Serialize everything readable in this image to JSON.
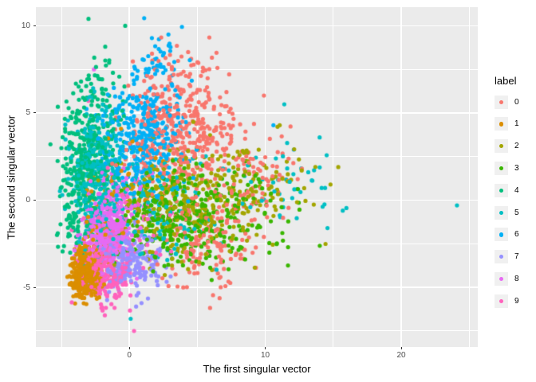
{
  "colors": {
    "background": "#ffffff",
    "panel_bg": "#ebebeb",
    "grid": "#ffffff",
    "tick_label": "#4d4d4d",
    "tick_mark": "#333333",
    "axis_title": "#000000",
    "legend_key_bg": "#f0f0f0"
  },
  "chart_data": {
    "type": "scatter",
    "title": "",
    "xlabel": "The first singular vector",
    "ylabel": "The second singular vector",
    "xlim": [
      -6.87,
      25.63
    ],
    "ylim": [
      -8.42,
      11.07
    ],
    "x_major_ticks": [
      0,
      10,
      20
    ],
    "x_minor_ticks": [
      -5,
      5,
      15,
      25
    ],
    "y_major_ticks": [
      -5,
      0,
      5,
      10
    ],
    "y_minor_ticks": [
      -7.5,
      -2.5,
      2.5,
      7.5
    ],
    "grid": true,
    "point_radius_px": 2.6,
    "legend": {
      "title": "label",
      "position": "right",
      "entries": [
        "0",
        "1",
        "2",
        "3",
        "4",
        "5",
        "6",
        "7",
        "8",
        "9"
      ]
    },
    "series": [
      {
        "label": "0",
        "color": "#F8766D",
        "clusters": [
          [
            3.5,
            4.2,
            2.1,
            1.9,
            430
          ],
          [
            5.5,
            -2.4,
            1.7,
            1.4,
            150
          ],
          [
            8.7,
            1.2,
            2.1,
            1.5,
            90
          ]
        ],
        "points": [
          [
            9.9,
            6.0
          ]
        ]
      },
      {
        "label": "1",
        "color": "#DB8E00",
        "clusters": [
          [
            -3.2,
            -4.2,
            0.5,
            0.72,
            400
          ],
          [
            -2.2,
            -2.4,
            0.8,
            1.1,
            70
          ],
          [
            -0.3,
            0.8,
            1.5,
            1.5,
            50
          ]
        ],
        "points": []
      },
      {
        "label": "2",
        "color": "#A3A500",
        "clusters": [
          [
            3.8,
            -0.2,
            2.5,
            1.6,
            280
          ],
          [
            9.5,
            1.0,
            2.3,
            1.3,
            80
          ]
        ],
        "points": [
          [
            14.8,
            0.9
          ]
        ]
      },
      {
        "label": "3",
        "color": "#39B600",
        "clusters": [
          [
            3.3,
            -0.8,
            2.3,
            1.4,
            320
          ],
          [
            7.8,
            -1.0,
            2.3,
            1.2,
            90
          ]
        ],
        "points": []
      },
      {
        "label": "4",
        "color": "#00BF7D",
        "clusters": [
          [
            -3.1,
            2.3,
            1.0,
            1.8,
            310
          ],
          [
            -2.0,
            6.2,
            1.3,
            1.4,
            55
          ],
          [
            -4.2,
            -0.8,
            0.7,
            1.1,
            60
          ]
        ],
        "points": [
          [
            -3.0,
            10.4
          ],
          [
            -0.3,
            10.0
          ]
        ]
      },
      {
        "label": "5",
        "color": "#00BFC4",
        "clusters": [
          [
            -2.4,
            1.3,
            1.0,
            1.9,
            300
          ],
          [
            1.8,
            0.5,
            2.3,
            1.3,
            80
          ],
          [
            11.3,
            0.8,
            2.1,
            1.1,
            45
          ],
          [
            2.5,
            -2.0,
            2.0,
            1.2,
            40
          ]
        ],
        "points": [
          [
            24.1,
            -0.3
          ],
          [
            0.1,
            -6.8
          ],
          [
            15.7,
            -0.6
          ],
          [
            11.4,
            5.5
          ],
          [
            14.0,
            3.6
          ]
        ]
      },
      {
        "label": "6",
        "color": "#00B0F6",
        "clusters": [
          [
            0.9,
            3.4,
            1.5,
            1.7,
            380
          ],
          [
            2.4,
            7.2,
            1.3,
            1.2,
            55
          ]
        ],
        "points": [
          [
            10.6,
            4.3
          ],
          [
            12.1,
            2.9
          ]
        ]
      },
      {
        "label": "7",
        "color": "#9590FF",
        "clusters": [
          [
            -0.2,
            -3.3,
            1.2,
            0.9,
            250
          ]
        ],
        "points": [
          [
            0.5,
            -6.1
          ],
          [
            0.9,
            -5.9
          ]
        ]
      },
      {
        "label": "8",
        "color": "#E76BF3",
        "clusters": [
          [
            -1.6,
            -1.8,
            0.9,
            1.0,
            300
          ],
          [
            -0.4,
            0.3,
            1.2,
            1.1,
            60
          ]
        ],
        "points": [
          [
            -2.6,
            7.5
          ]
        ]
      },
      {
        "label": "9",
        "color": "#FF62BC",
        "clusters": [
          [
            -1.8,
            -3.9,
            0.9,
            0.9,
            280
          ],
          [
            0.6,
            -1.6,
            1.5,
            1.4,
            50
          ]
        ],
        "points": [
          [
            0.35,
            -7.5
          ],
          [
            -1.8,
            -6.6
          ],
          [
            -3.0,
            5.7
          ]
        ]
      }
    ]
  }
}
